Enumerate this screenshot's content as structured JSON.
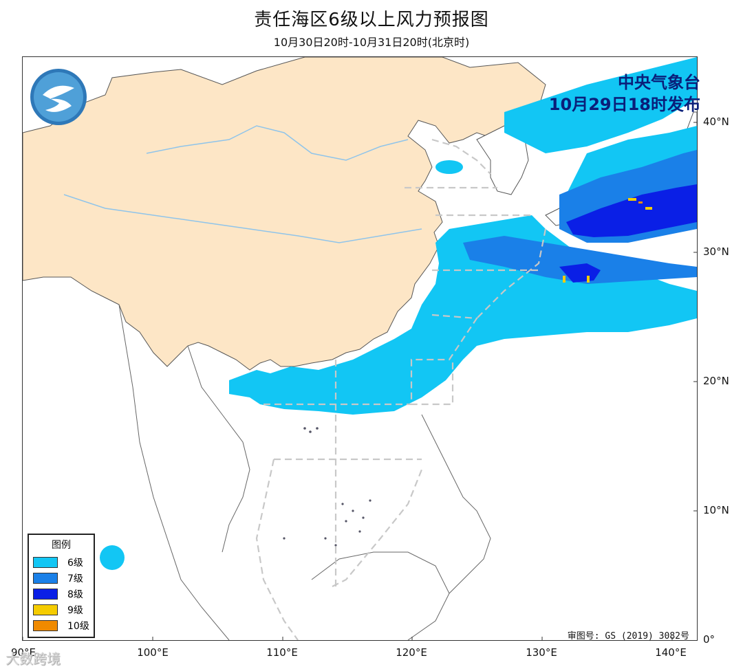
{
  "title": "责任海区6级以上风力预报图",
  "subtitle": "10月30日20时-10月31日20时(北京时)",
  "issuer": {
    "line1": "中央气象台",
    "line2": "10月29日18时发布"
  },
  "axes": {
    "lat_labels": [
      "40°N",
      "30°N",
      "20°N",
      "10°N",
      "0°"
    ],
    "lon_labels": [
      "90°E",
      "100°E",
      "110°E",
      "120°E",
      "130°E",
      "140°E"
    ]
  },
  "legend": {
    "title": "图例",
    "items": [
      {
        "label": "6级",
        "color": "#12c6f4"
      },
      {
        "label": "7级",
        "color": "#1a80e8"
      },
      {
        "label": "8级",
        "color": "#0a1fe6"
      },
      {
        "label": "9级",
        "color": "#f5cc00"
      },
      {
        "label": "10级",
        "color": "#f08a00"
      }
    ]
  },
  "review_number": "审图号: GS (2019) 3082号",
  "watermark": "大数跨境",
  "colors": {
    "land_china": "#fde6c6",
    "land_other": "#ffffff",
    "water": "#ffffff",
    "river": "#8fc4ea",
    "border": "#333333",
    "sea_zone_line": "#c8c8c8"
  },
  "icons": [
    "cma-logo-icon"
  ]
}
